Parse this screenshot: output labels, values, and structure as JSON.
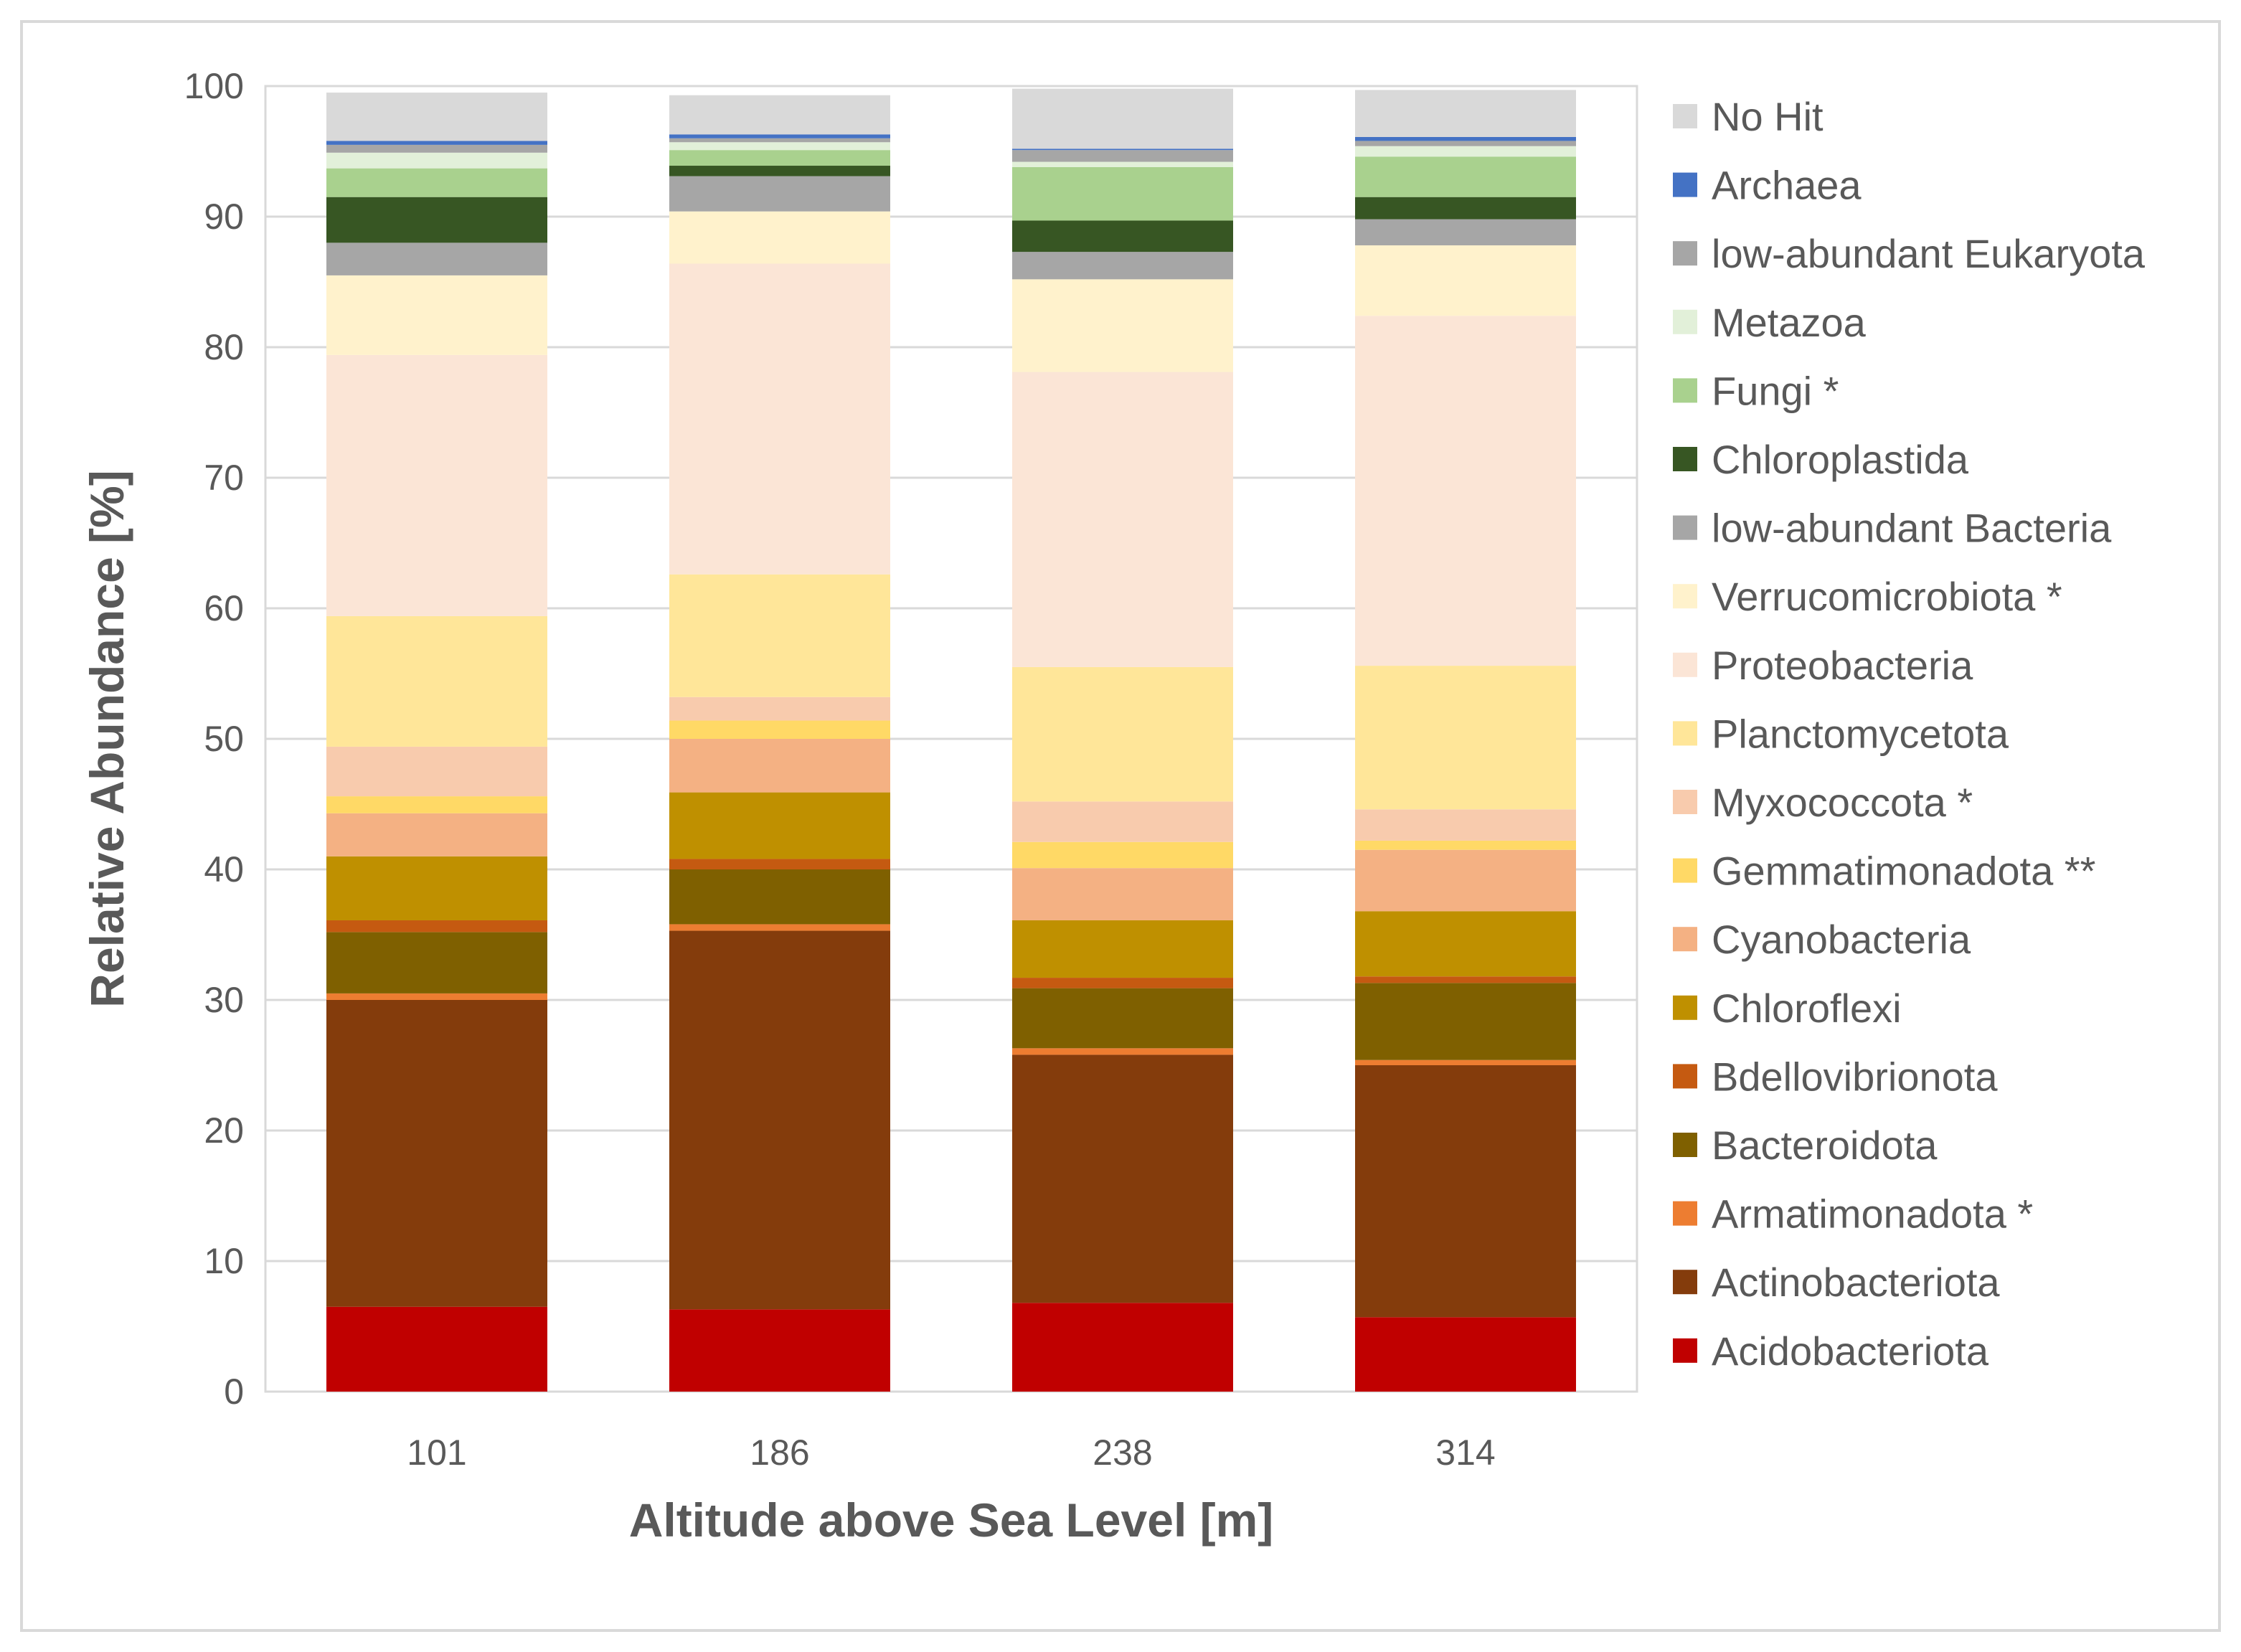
{
  "chart_data": {
    "type": "bar",
    "stacked": true,
    "categories": [
      "101",
      "186",
      "238",
      "314"
    ],
    "xlabel": "Altitude above Sea Level [m]",
    "ylabel": "Relative Abundance [%]",
    "ylim": [
      0,
      100
    ],
    "yticks": [
      0,
      10,
      20,
      30,
      40,
      50,
      60,
      70,
      80,
      90,
      100
    ],
    "grid": true,
    "legend_position": "right",
    "series": [
      {
        "name": "Acidobacteriota",
        "color": "#c00000",
        "values": [
          6.5,
          6.3,
          6.8,
          5.7
        ]
      },
      {
        "name": "Actinobacteriota",
        "color": "#843c0c",
        "values": [
          23.5,
          29.0,
          19.0,
          19.3
        ]
      },
      {
        "name": "Armatimonadota *",
        "color": "#ed7d31",
        "values": [
          0.5,
          0.5,
          0.5,
          0.4
        ]
      },
      {
        "name": "Bacteroidota",
        "color": "#7f6000",
        "values": [
          4.7,
          4.2,
          4.6,
          5.9
        ]
      },
      {
        "name": "Bdellovibrionota",
        "color": "#c55a11",
        "values": [
          0.9,
          0.8,
          0.8,
          0.5
        ]
      },
      {
        "name": "Chloroflexi",
        "color": "#bf9000",
        "values": [
          4.9,
          5.1,
          4.4,
          5.0
        ]
      },
      {
        "name": "Cyanobacteria",
        "color": "#f4b183",
        "values": [
          3.3,
          4.1,
          4.0,
          4.7
        ]
      },
      {
        "name": "Gemmatimonadota **",
        "color": "#ffd966",
        "values": [
          1.3,
          1.4,
          2.0,
          0.7
        ]
      },
      {
        "name": "Myxococcota *",
        "color": "#f8cbad",
        "values": [
          3.8,
          1.8,
          3.1,
          2.4
        ]
      },
      {
        "name": "Planctomycetota",
        "color": "#ffe699",
        "values": [
          10.0,
          9.4,
          10.3,
          11.0
        ]
      },
      {
        "name": "Proteobacteria",
        "color": "#fbe5d6",
        "values": [
          20.0,
          23.8,
          22.6,
          26.8
        ]
      },
      {
        "name": "Verrucomicrobiota *",
        "color": "#fff2cc",
        "values": [
          6.1,
          4.0,
          7.1,
          5.4
        ]
      },
      {
        "name": "low-abundant Bacteria",
        "color": "#a6a6a6",
        "values": [
          2.5,
          2.7,
          2.1,
          2.0
        ]
      },
      {
        "name": "Chloroplastida",
        "color": "#375623",
        "values": [
          3.5,
          0.8,
          2.4,
          1.7
        ]
      },
      {
        "name": "Fungi *",
        "color": "#a9d18e",
        "values": [
          2.2,
          1.2,
          4.1,
          3.1
        ]
      },
      {
        "name": "Metazoa",
        "color": "#e2f0d9",
        "values": [
          1.2,
          0.6,
          0.4,
          0.8
        ]
      },
      {
        "name": "low-abundant Eukaryota",
        "color": "#a6a6a6",
        "values": [
          0.6,
          0.3,
          0.9,
          0.4
        ]
      },
      {
        "name": "Archaea",
        "color": "#4472c4",
        "values": [
          0.3,
          0.3,
          0.1,
          0.3
        ]
      },
      {
        "name": "No Hit",
        "color": "#d9d9d9",
        "values": [
          3.7,
          3.0,
          4.6,
          3.6
        ]
      }
    ]
  }
}
